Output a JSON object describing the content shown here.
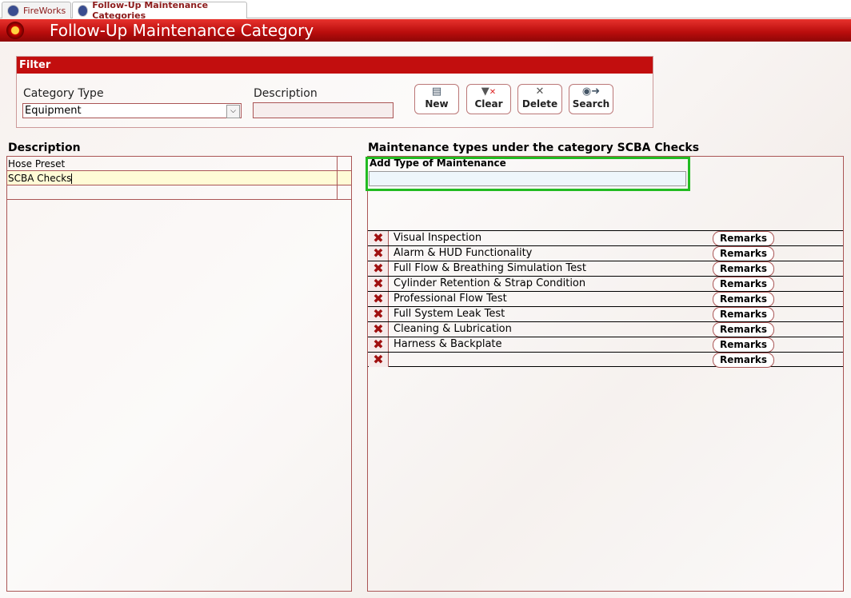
{
  "tabs": [
    {
      "label": "FireWorks"
    },
    {
      "label": "Follow-Up Maintenance Categories"
    }
  ],
  "header": {
    "title": "Follow-Up Maintenance Category"
  },
  "filter": {
    "title": "Filter",
    "category_type_label": "Category Type",
    "category_type_value": "Equipment",
    "description_label": "Description",
    "description_value": "",
    "buttons": [
      {
        "label": "New",
        "icon": "new-icon"
      },
      {
        "label": "Clear",
        "icon": "clear-filter-icon"
      },
      {
        "label": "Delete",
        "icon": "delete-icon"
      },
      {
        "label": "Search",
        "icon": "binoculars-icon"
      }
    ]
  },
  "left": {
    "title": "Description",
    "rows": [
      "Hose Preset",
      "SCBA Checks",
      ""
    ]
  },
  "right": {
    "title": "Maintenance types under the category SCBA Checks",
    "add_label": "Add Type of Maintenance",
    "add_value": "",
    "remarks_label": "Remarks",
    "rows": [
      "Visual Inspection",
      "Alarm & HUD Functionality",
      "Full Flow & Breathing Simulation Test",
      "Cylinder Retention & Strap Condition",
      "Professional Flow Test",
      "Full System Leak Test",
      "Cleaning & Lubrication",
      "Harness & Backplate",
      ""
    ]
  },
  "colors": {
    "accent": "#c20e0e",
    "highlight": "#22bb22",
    "selected_row": "#fffbd6"
  }
}
